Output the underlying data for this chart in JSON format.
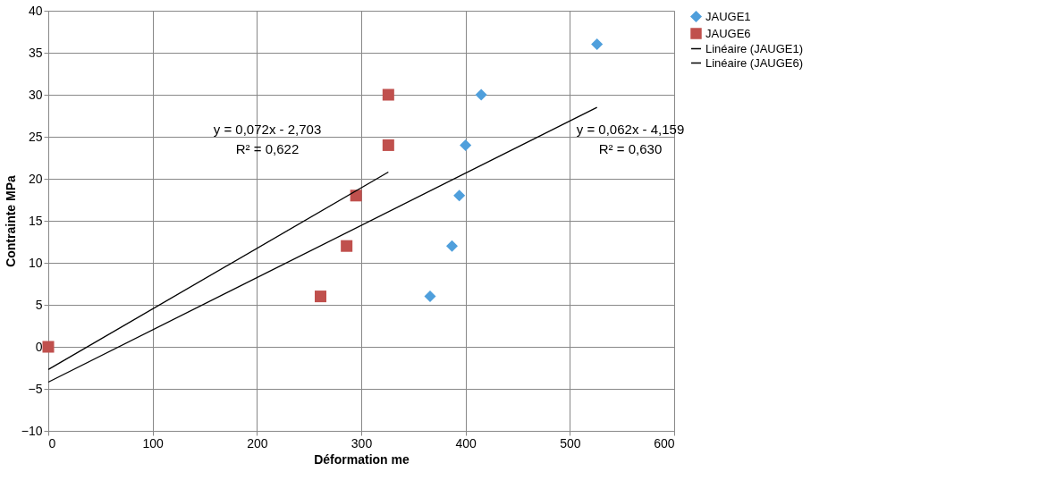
{
  "chart_data": {
    "type": "scatter",
    "xlabel": "Déformation me",
    "ylabel": "Contrainte MPa",
    "xlim": [
      0,
      600
    ],
    "xticks": [
      0,
      100,
      200,
      300,
      400,
      500,
      600
    ],
    "ylim": [
      -10,
      40
    ],
    "yticks": [
      -10,
      -5,
      0,
      5,
      10,
      15,
      20,
      25,
      30,
      35,
      40
    ],
    "grid": true,
    "legend": "right",
    "series": [
      {
        "name": "JAUGE1",
        "color": "#4f9fdc",
        "marker": "diamond",
        "x": [
          366,
          387,
          394,
          400,
          415,
          526
        ],
        "values": [
          6,
          12,
          18,
          24,
          30,
          36
        ]
      },
      {
        "name": "JAUGE6",
        "color": "#c0504d",
        "marker": "square",
        "x": [
          0,
          261,
          286,
          295,
          326,
          326
        ],
        "values": [
          0,
          6,
          12,
          18,
          24,
          30
        ]
      },
      {
        "name": "Linéaire (JAUGE1)",
        "type": "line",
        "color": "#000000",
        "x": [
          0,
          526
        ],
        "values": [
          -4.2,
          28.5
        ]
      },
      {
        "name": "Linéaire (JAUGE6)",
        "type": "line",
        "color": "#000000",
        "x": [
          0,
          326
        ],
        "values": [
          -2.7,
          20.8
        ]
      }
    ],
    "annotations": [
      "y = 0,072x - 2,703\nR² = 0,622",
      "y = 0,062x - 4,159\nR² = 0,630"
    ]
  }
}
